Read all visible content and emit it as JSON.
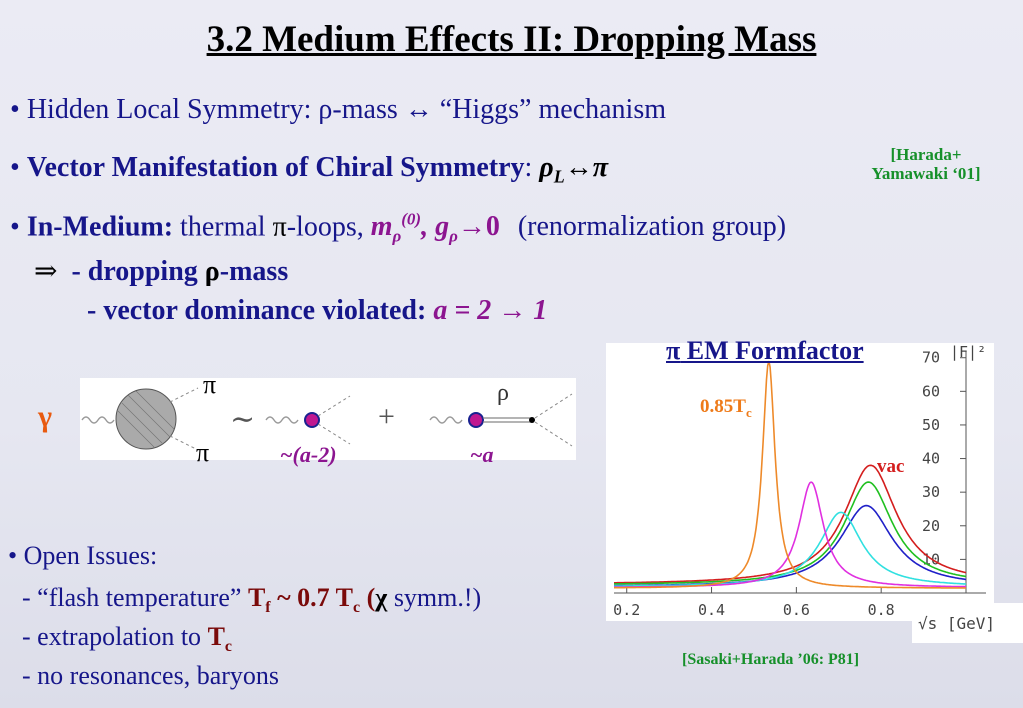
{
  "title": "3.2 Medium Effects II: Dropping Mass",
  "bullet1": {
    "bullet": "•",
    "text_a": "Hidden Local Symmetry: ",
    "rho": "ρ",
    "text_b": "-mass ↔ “Higgs” mechanism"
  },
  "bullet2": {
    "bullet": "•",
    "bold": "Vector Manifestation of Chiral Symmetry",
    "colon": ": ",
    "rho": "ρ",
    "sub": "L",
    "arrow_pi": "↔π"
  },
  "citation1": {
    "line1": "[Harada+",
    "line2": "Yamawaki ‘01]"
  },
  "bullet3": {
    "bullet": "•",
    "bold": "In-Medium:",
    "text": " thermal ",
    "pi": "π",
    "text2": "-loops, ",
    "m": "m",
    "m_sub": "ρ",
    "m_sup": "(0)",
    "comma": ", ",
    "g": "g",
    "g_sub": "ρ",
    "to_zero": "→0",
    "paren": "(renormalization group)"
  },
  "implies": {
    "arrow": "⇒",
    "line1_a": "- dropping ",
    "line1_rho": "ρ",
    "line1_b": "-mass",
    "line2_a": "- vector dominance violated: ",
    "line2_b": "a = 2 → 1"
  },
  "diagram": {
    "gamma": "γ",
    "pi_top": "π",
    "pi_bottom": "π",
    "tilde": "∼",
    "plus": "+",
    "rho": "ρ",
    "coef1": "~(a-2)",
    "coef2": "~a"
  },
  "open_issues": {
    "header": "• Open Issues:",
    "item1_a": "- “flash temperature” ",
    "item1_T": "T",
    "item1_f": "f",
    "item1_tilde": " ~ 0.7 ",
    "item1_T2": "T",
    "item1_c": "c",
    "item1_open": " (",
    "item1_chi": "χ",
    "item1_close": " symm.!)",
    "item2_a": "- extrapolation to ",
    "item2_T": "T",
    "item2_c": "c",
    "item3": "- no resonances, baryons"
  },
  "plot": {
    "title_pi": "π",
    "title": " EM Formfactor",
    "ylabel": "|F|²",
    "xlabel": "√s  [GeV]",
    "label_085": "0.85T",
    "label_085_sub": "c",
    "label_vac": "vac",
    "citation": "[Sasaki+Harada ’06: P81]"
  },
  "chart_data": {
    "type": "line",
    "ylabel": "|F|²",
    "xlabel": "√s [GeV]",
    "xlim": [
      0.17,
      1.0
    ],
    "ylim": [
      0,
      72
    ],
    "x_ticks": [
      "0.2",
      "0.4",
      "0.6",
      "0.8"
    ],
    "y_ticks": [
      "10",
      "20",
      "30",
      "40",
      "50",
      "60",
      "70"
    ],
    "series": [
      {
        "name": "vac",
        "color": "#d41e1e",
        "peak_x": 0.775,
        "peak_y": 38,
        "width": 0.075,
        "base": 2.5
      },
      {
        "color": "#20c020",
        "peak_x": 0.77,
        "peak_y": 33,
        "width": 0.07,
        "base": 2.3
      },
      {
        "color": "#2020c8",
        "peak_x": 0.765,
        "peak_y": 26,
        "width": 0.075,
        "base": 1.8
      },
      {
        "color": "#30e0e0",
        "peak_x": 0.705,
        "peak_y": 24,
        "width": 0.06,
        "base": 1.8
      },
      {
        "color": "#e030e0",
        "peak_x": 0.635,
        "peak_y": 33,
        "width": 0.035,
        "base": 1.6
      },
      {
        "name": "0.85T_c",
        "color": "#ee8a2a",
        "peak_x": 0.535,
        "peak_y": 69,
        "width": 0.018,
        "base": 1.4
      }
    ]
  }
}
